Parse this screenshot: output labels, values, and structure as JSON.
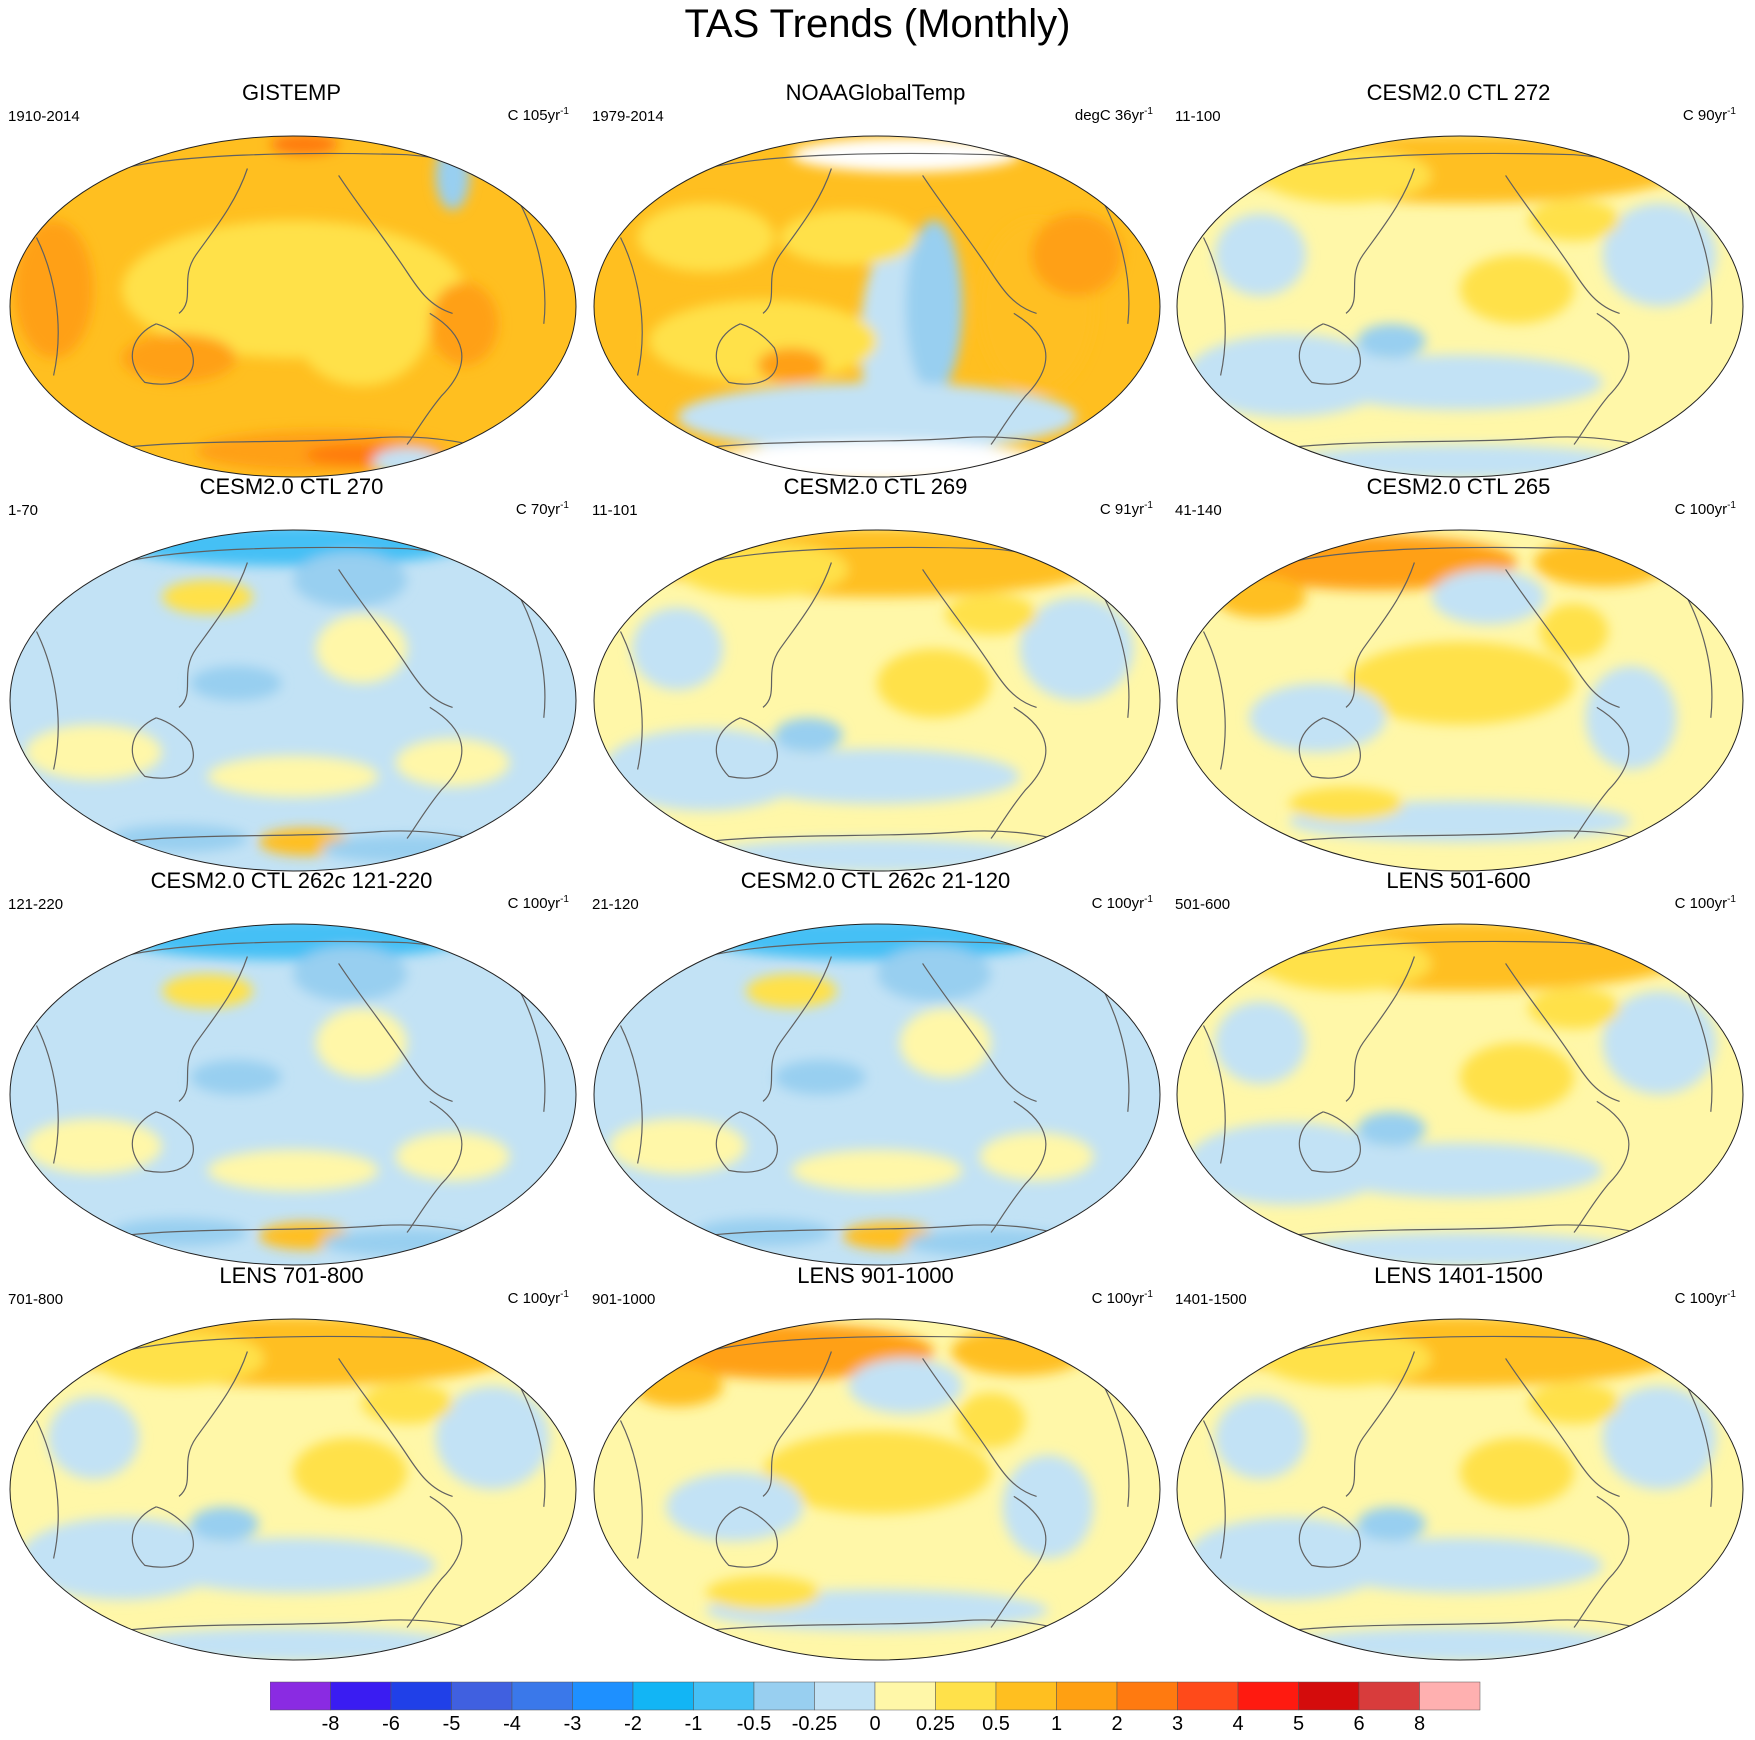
{
  "figure": {
    "title": "TAS Trends (Monthly)"
  },
  "colors": {
    "levels": [
      "#8a2be2",
      "#3a1cf2",
      "#2040e8",
      "#4060e0",
      "#3a78ea",
      "#1e90ff",
      "#12b5f5",
      "#45c0f5",
      "#98cff0",
      "#c2e2f5",
      "#fff7a8",
      "#ffe14a",
      "#ffbf20",
      "#ffa012",
      "#ff7a10",
      "#ff4a1a",
      "#ff1a10",
      "#d40c0c",
      "#d83c3c",
      "#ffb0b0"
    ],
    "coast": "#606060",
    "missing": "#ffffff"
  },
  "colorbar": {
    "labels": [
      "-8",
      "-6",
      "-5",
      "-4",
      "-3",
      "-2",
      "-1",
      "-0.5",
      "-0.25",
      "0",
      "0.25",
      "0.5",
      "1",
      "2",
      "3",
      "4",
      "5",
      "6",
      "8"
    ]
  },
  "panels": [
    {
      "title": "GISTEMP",
      "left": "1910-2014",
      "unit": "C 105yr",
      "sup": "-1",
      "scheme": "gis"
    },
    {
      "title": "NOAAGlobalTemp",
      "left": "1979-2014",
      "unit": "degC 36yr",
      "sup": "-1",
      "scheme": "noaa"
    },
    {
      "title": "CESM2.0 CTL 272",
      "left": "11-100",
      "unit": "C 90yr",
      "sup": "-1",
      "scheme": "mixed"
    },
    {
      "title": "CESM2.0 CTL 270",
      "left": "1-70",
      "unit": "C 70yr",
      "sup": "-1",
      "scheme": "cool"
    },
    {
      "title": "CESM2.0 CTL 269",
      "left": "11-101",
      "unit": "C 91yr",
      "sup": "-1",
      "scheme": "mixed"
    },
    {
      "title": "CESM2.0 CTL 265",
      "left": "41-140",
      "unit": "C 100yr",
      "sup": "-1",
      "scheme": "warmnorth"
    },
    {
      "title": "CESM2.0 CTL 262c 121-220",
      "left": "121-220",
      "unit": "C 100yr",
      "sup": "-1",
      "scheme": "cool"
    },
    {
      "title": "CESM2.0 CTL 262c 21-120",
      "left": "21-120",
      "unit": "C 100yr",
      "sup": "-1",
      "scheme": "cool"
    },
    {
      "title": "LENS 501-600",
      "left": "501-600",
      "unit": "C 100yr",
      "sup": "-1",
      "scheme": "mixed"
    },
    {
      "title": "LENS 701-800",
      "left": "701-800",
      "unit": "C 100yr",
      "sup": "-1",
      "scheme": "mixed"
    },
    {
      "title": "LENS 901-1000",
      "left": "901-1000",
      "unit": "C 100yr",
      "sup": "-1",
      "scheme": "warmnorth"
    },
    {
      "title": "LENS 1401-1500",
      "left": "1401-1500",
      "unit": "C 100yr",
      "sup": "-1",
      "scheme": "mixed"
    }
  ]
}
